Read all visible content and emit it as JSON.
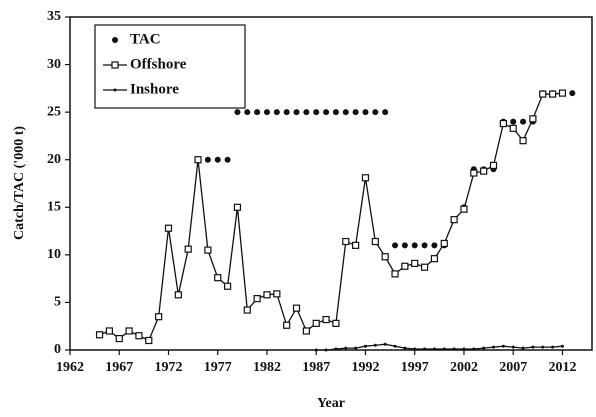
{
  "chart_data": {
    "type": "line",
    "x_label": "Year",
    "y_label": "Catch/TAC ('000 t)",
    "x": [
      1965,
      1966,
      1967,
      1968,
      1969,
      1970,
      1971,
      1972,
      1973,
      1974,
      1975,
      1976,
      1977,
      1978,
      1979,
      1980,
      1981,
      1982,
      1983,
      1984,
      1985,
      1986,
      1987,
      1988,
      1989,
      1990,
      1991,
      1992,
      1993,
      1994,
      1995,
      1996,
      1997,
      1998,
      1999,
      2000,
      2001,
      2002,
      2003,
      2004,
      2005,
      2006,
      2007,
      2008,
      2009,
      2010,
      2011,
      2012,
      2013
    ],
    "series": [
      {
        "name": "TAC",
        "color": "#111111",
        "marker": "dot",
        "line": false,
        "values": [
          null,
          null,
          null,
          null,
          null,
          null,
          null,
          null,
          null,
          null,
          20,
          20,
          20,
          20,
          25,
          25,
          25,
          25,
          25,
          25,
          25,
          25,
          25,
          25,
          25,
          25,
          25,
          25,
          25,
          25,
          11,
          11,
          11,
          11,
          11,
          11,
          null,
          15,
          19,
          19,
          19,
          24,
          24,
          24,
          24,
          27,
          27,
          27,
          27
        ]
      },
      {
        "name": "Offshore",
        "color": "#111111",
        "marker": "square",
        "line": true,
        "values": [
          1.6,
          2.0,
          1.2,
          2.0,
          1.5,
          1.0,
          3.5,
          12.8,
          5.8,
          10.6,
          20.0,
          10.5,
          7.6,
          6.7,
          15.0,
          4.2,
          5.4,
          5.8,
          5.9,
          2.6,
          4.4,
          2.0,
          2.8,
          3.2,
          2.8,
          11.4,
          11.0,
          18.1,
          11.4,
          9.8,
          8.0,
          8.8,
          9.1,
          8.7,
          9.6,
          11.2,
          13.7,
          14.8,
          18.6,
          18.8,
          19.4,
          23.8,
          23.3,
          22.0,
          24.3,
          26.9,
          26.9,
          27.0,
          null
        ]
      },
      {
        "name": "Inshore",
        "color": "#111111",
        "marker": "point",
        "line": true,
        "values": [
          null,
          null,
          null,
          null,
          null,
          null,
          null,
          null,
          null,
          null,
          null,
          null,
          null,
          null,
          null,
          null,
          null,
          null,
          null,
          null,
          null,
          null,
          0,
          0,
          0.1,
          0.2,
          0.2,
          0.4,
          0.5,
          0.6,
          0.4,
          0.2,
          0.1,
          0.1,
          0.1,
          0.1,
          0.1,
          0.1,
          0.1,
          0.2,
          0.3,
          0.4,
          0.3,
          0.2,
          0.3,
          0.3,
          0.3,
          0.4,
          null
        ]
      }
    ],
    "xlim": [
      1962,
      2015
    ],
    "xticks": [
      1962,
      1967,
      1972,
      1977,
      1982,
      1987,
      1992,
      1997,
      2002,
      2007,
      2012
    ],
    "ylim": [
      0,
      35
    ],
    "yticks": [
      0,
      5,
      10,
      15,
      20,
      25,
      30,
      35
    ],
    "grid": false,
    "legend": "upper left"
  }
}
